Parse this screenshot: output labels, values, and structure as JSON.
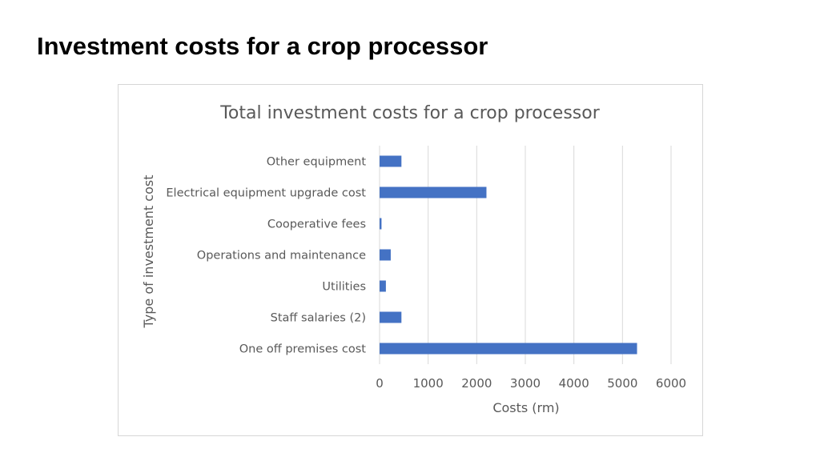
{
  "slide": {
    "title": "Investment costs for a crop processor"
  },
  "chart_data": {
    "type": "bar",
    "orientation": "horizontal",
    "title": "Total investment costs for a crop processor",
    "xlabel": "Costs (rm)",
    "ylabel": "Type of investment cost",
    "categories": [
      "Other equipment",
      "Electrical equipment upgrade cost",
      "Cooperative fees",
      "Operations and maintenance",
      "Utilities",
      "Staff salaries (2)",
      "One off premises cost"
    ],
    "values": [
      450,
      2200,
      40,
      230,
      130,
      450,
      5300
    ],
    "xlim": [
      0,
      6000
    ],
    "xticks": [
      "0",
      "1000",
      "2000",
      "3000",
      "4000",
      "5000",
      "6000"
    ],
    "grid": "vertical",
    "legend": "none",
    "colors": {
      "bar": "#4472c4",
      "grid": "#d9d9d9",
      "text": "#595959"
    }
  }
}
